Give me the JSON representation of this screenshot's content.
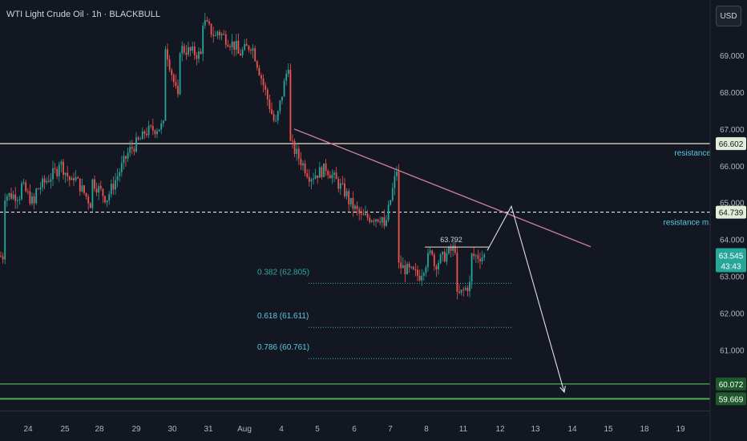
{
  "header": {
    "title": "WTI Light Crude Oil · 1h · BLACKBULL",
    "currency_button": "USD"
  },
  "colors": {
    "bg": "#131722",
    "up": "#26a69a",
    "down": "#ef5350",
    "text": "#d1d4dc",
    "axis_text": "#b2b5be",
    "label_blue": "#5ac8e0",
    "fib_green": "#2ea89a",
    "green_line": "#4caf50",
    "trendline": "#c77d98"
  },
  "chart_data": {
    "type": "candlestick",
    "symbol": "WTI Light Crude Oil",
    "interval": "1h",
    "broker": "BLACKBULL",
    "ylim": [
      59.35,
      70.2
    ],
    "y_ticks": [
      61.0,
      62.0,
      63.0,
      64.0,
      65.0,
      66.0,
      67.0,
      68.0,
      69.0
    ],
    "y_ticks_text": [
      "61.000",
      "62.000",
      "63.000",
      "64.000",
      "65.000",
      "66.000",
      "67.000",
      "68.000",
      "69.000"
    ],
    "x_ticks": [
      "24",
      "25",
      "28",
      "29",
      "30",
      "31",
      "Aug",
      "4",
      "5",
      "6",
      "7",
      "8",
      "11",
      "12",
      "13",
      "14",
      "15",
      "18",
      "19"
    ],
    "price_path": [
      [
        "24",
        65.2
      ],
      [
        "24",
        64.9
      ],
      [
        "24",
        65.5
      ],
      [
        "24",
        65.3
      ],
      [
        "25",
        65.9
      ],
      [
        "25",
        65.5
      ],
      [
        "25",
        66.2
      ],
      [
        "25",
        65.8
      ],
      [
        "28",
        64.9
      ],
      [
        "28",
        65.1
      ],
      [
        "28",
        65.6
      ],
      [
        "29",
        66.8
      ],
      [
        "29",
        66.4
      ],
      [
        "29",
        66.9
      ],
      [
        "30",
        67.1
      ],
      [
        "30",
        67.6
      ],
      [
        "30",
        69.3
      ],
      [
        "30",
        69.2
      ],
      [
        "31",
        69.0
      ],
      [
        "31",
        69.5
      ],
      [
        "31",
        70.0
      ],
      [
        "31",
        69.7
      ],
      [
        "Aug",
        69.2
      ],
      [
        "Aug",
        69.3
      ],
      [
        "Aug",
        69.0
      ],
      [
        "4",
        68.8
      ],
      [
        "4",
        67.2
      ],
      [
        "4",
        66.7
      ],
      [
        "4",
        66.9
      ],
      [
        "5",
        65.9
      ],
      [
        "5",
        65.7
      ],
      [
        "5",
        66.0
      ],
      [
        "6",
        65.2
      ],
      [
        "6",
        64.6
      ],
      [
        "6",
        65.1
      ],
      [
        "7",
        66.0
      ],
      [
        "7",
        64.6
      ],
      [
        "7",
        63.3
      ],
      [
        "7",
        64.1
      ],
      [
        "8",
        63.8
      ],
      [
        "8",
        63.0
      ],
      [
        "8",
        63.3
      ],
      [
        "11",
        63.8
      ],
      [
        "11",
        62.8
      ],
      [
        "11",
        62.4
      ],
      [
        "11",
        63.545
      ]
    ],
    "last_price": {
      "value": 63.545,
      "label": "63.545",
      "countdown": "43:43"
    },
    "annotations": {
      "resistance": {
        "value": 66.602,
        "label": "66.602",
        "text": "resistance"
      },
      "resistance_m": {
        "value": 64.739,
        "label": "64.739",
        "text": "resistance m."
      },
      "support_lines": [
        {
          "value": 60.072,
          "label": "60.072"
        },
        {
          "value": 59.669,
          "label": "59.669"
        }
      ],
      "local_high": {
        "value": 63.792,
        "label": "63.792"
      },
      "fib_levels": [
        {
          "value": 62.805,
          "label": "0.382 (62.805)",
          "muted": true
        },
        {
          "value": 61.611,
          "label": "0.618 (61.611)",
          "muted": false
        },
        {
          "value": 60.761,
          "label": "0.786 (60.761)",
          "muted": false
        }
      ],
      "trendline": {
        "from": [
          "4",
          67.0
        ],
        "to": [
          "15",
          63.8
        ]
      },
      "projection_path": [
        [
          "11",
          63.7
        ],
        [
          "12",
          64.9
        ],
        [
          "14",
          59.85
        ]
      ]
    }
  }
}
